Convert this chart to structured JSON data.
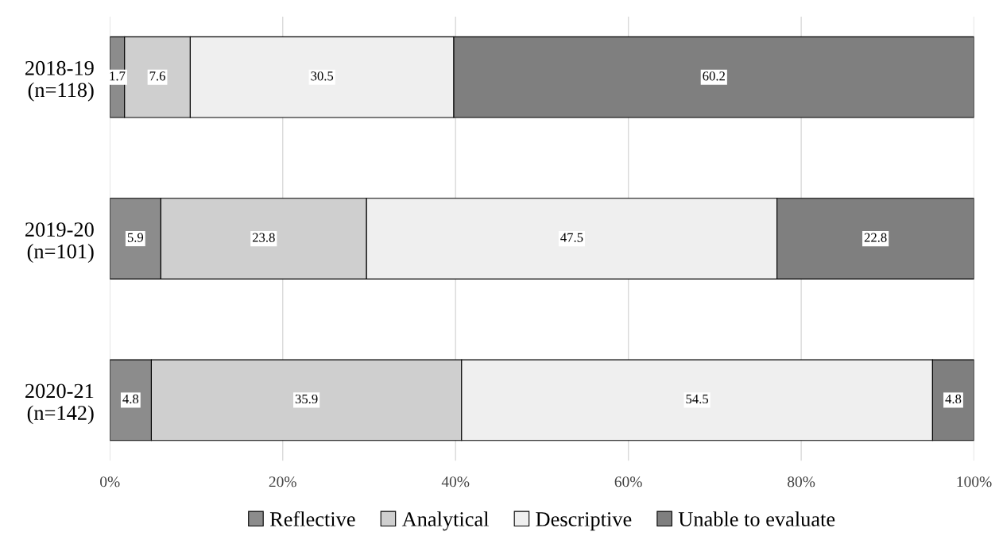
{
  "chart_data": {
    "type": "bar",
    "orientation": "horizontal",
    "stacked": true,
    "categories": [
      "2018-19\n(n=118)",
      "2019-20\n(n=101)",
      "2020-21\n(n=142)"
    ],
    "series": [
      {
        "name": "Reflective",
        "color": "#8c8c8c",
        "values": [
          1.7,
          5.9,
          4.8
        ]
      },
      {
        "name": "Analytical",
        "color": "#cfcfcf",
        "values": [
          7.6,
          23.8,
          35.9
        ]
      },
      {
        "name": "Descriptive",
        "color": "#efefef",
        "values": [
          30.5,
          47.5,
          54.5
        ]
      },
      {
        "name": "Unable to evaluate",
        "color": "#7f7f7f",
        "values": [
          60.2,
          22.8,
          4.8
        ]
      }
    ],
    "xlim": [
      0,
      100
    ],
    "xticks": [
      {
        "value": 0,
        "label": "0%"
      },
      {
        "value": 20,
        "label": "20%"
      },
      {
        "value": 40,
        "label": "40%"
      },
      {
        "value": 60,
        "label": "60%"
      },
      {
        "value": 80,
        "label": "80%"
      },
      {
        "value": 100,
        "label": "100%"
      }
    ],
    "grid": "x",
    "legend": "bottom",
    "data_labels": true
  }
}
